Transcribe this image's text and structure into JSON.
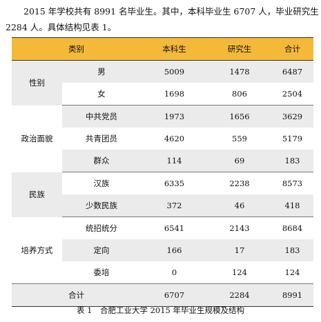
{
  "intro": {
    "line1": "2015 年学校共有 8991 名毕业生。其中，本科毕业生 6707 人，毕业研究生",
    "line2": "2284 人。具体结构见表 1。"
  },
  "table": {
    "headers": [
      "类别",
      "本科生",
      "研究生",
      "合计"
    ],
    "groups": [
      {
        "category": "性别",
        "rows": [
          {
            "label": "男",
            "values": [
              "5009",
              "1478",
              "6487"
            ]
          },
          {
            "label": "女",
            "values": [
              "1698",
              "806",
              "2504"
            ]
          }
        ]
      },
      {
        "category": "政治面貌",
        "rows": [
          {
            "label": "中共党员",
            "values": [
              "1973",
              "1656",
              "3629"
            ]
          },
          {
            "label": "共青团员",
            "values": [
              "4620",
              "559",
              "5179"
            ]
          },
          {
            "label": "群众",
            "values": [
              "114",
              "69",
              "183"
            ]
          }
        ]
      },
      {
        "category": "民族",
        "rows": [
          {
            "label": "汉族",
            "values": [
              "6335",
              "2238",
              "8573"
            ]
          },
          {
            "label": "少数民族",
            "values": [
              "372",
              "46",
              "418"
            ]
          }
        ]
      },
      {
        "category": "培养方式",
        "rows": [
          {
            "label": "统招统分",
            "values": [
              "6541",
              "2143",
              "8684"
            ]
          },
          {
            "label": "定向",
            "values": [
              "166",
              "17",
              "183"
            ]
          },
          {
            "label": "委培",
            "values": [
              "0",
              "124",
              "124"
            ]
          }
        ]
      }
    ],
    "total": {
      "label": "合计",
      "values": [
        "6707",
        "2284",
        "8991"
      ]
    }
  },
  "caption": "表 1　合肥工业大学 2015 年毕业生规模及结构"
}
